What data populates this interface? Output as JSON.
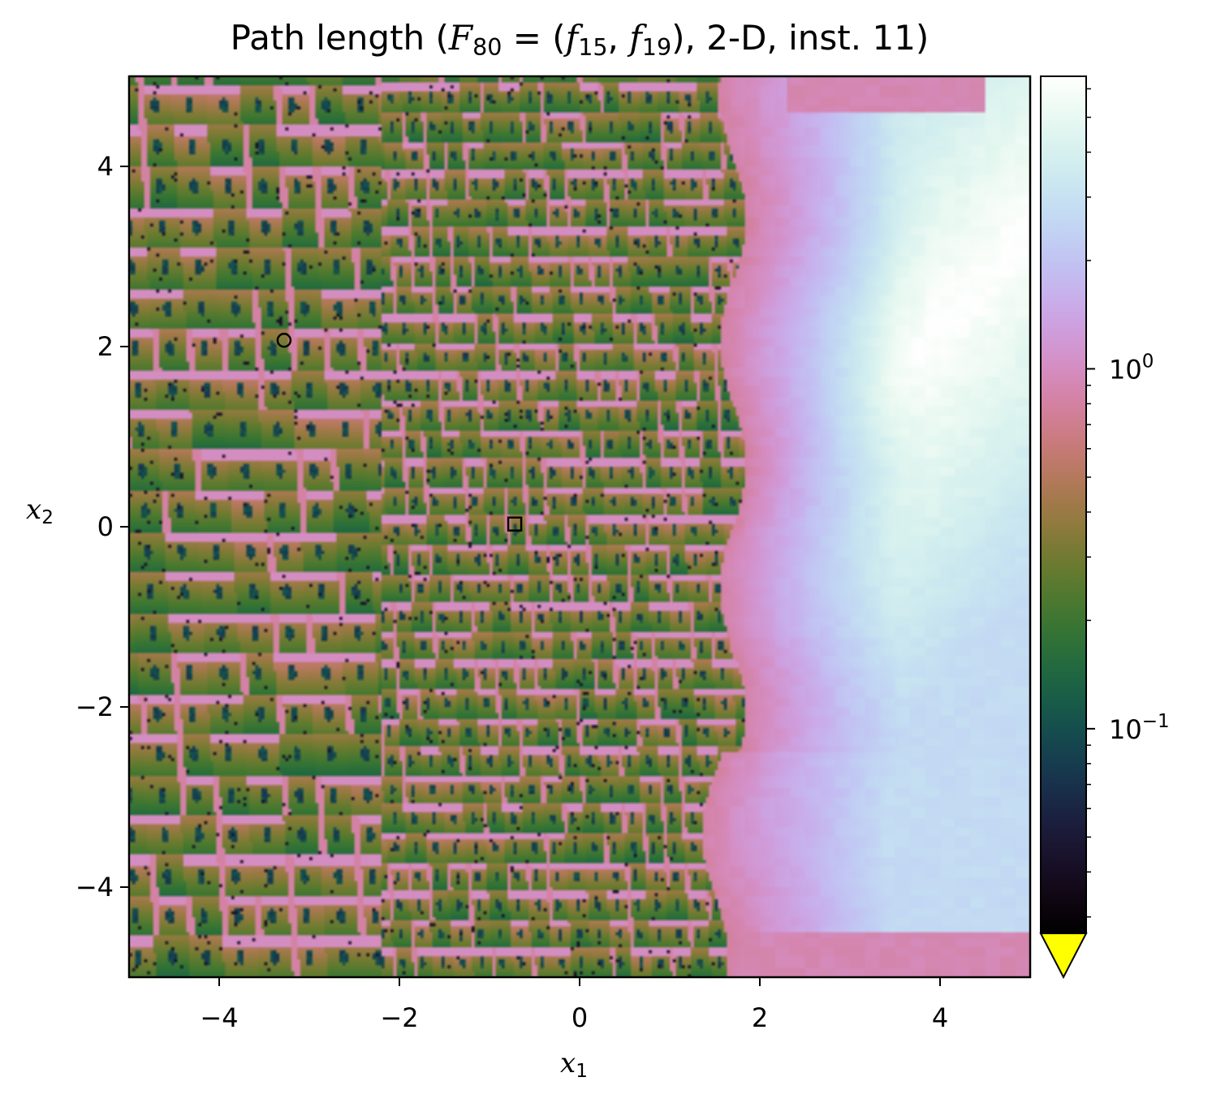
{
  "chart_data": {
    "type": "heatmap",
    "title": {
      "prefix": "Path length (",
      "F": "F",
      "F_sub": "80",
      "eq": " = (",
      "f1": "f",
      "f1_sub": "15",
      "comma": ", ",
      "f2": "f",
      "f2_sub": "19",
      "suffix": "), 2-D, inst. 11)"
    },
    "xlabel": {
      "var": "x",
      "sub": "1"
    },
    "ylabel": {
      "var": "x",
      "sub": "2"
    },
    "xlim": [
      -5,
      5
    ],
    "ylim": [
      -5,
      5
    ],
    "x_ticks": [
      -4,
      -2,
      0,
      2,
      4
    ],
    "y_ticks": [
      -4,
      -2,
      0,
      2,
      4
    ],
    "x_tick_labels": [
      "−4",
      "−2",
      "0",
      "2",
      "4"
    ],
    "y_tick_labels": [
      "−4",
      "−2",
      "0",
      "2",
      "4"
    ],
    "colorbar": {
      "scale": "log",
      "colormap": "cubehelix",
      "range": [
        0.027,
        6.5
      ],
      "major_ticks": [
        0.1,
        1
      ],
      "major_tick_labels": [
        {
          "base": "10",
          "exp": "−1"
        },
        {
          "base": "10",
          "exp": "0"
        }
      ],
      "extend": "min",
      "extend_color": "#ffff00"
    },
    "markers": [
      {
        "shape": "circle",
        "x": -3.28,
        "y": 2.07
      },
      {
        "shape": "square",
        "x": -0.72,
        "y": 0.03
      }
    ],
    "field_description": "regions: rough patchy region x1 < 1.8; smooth region to the right rising to maximum near diagonal band"
  }
}
